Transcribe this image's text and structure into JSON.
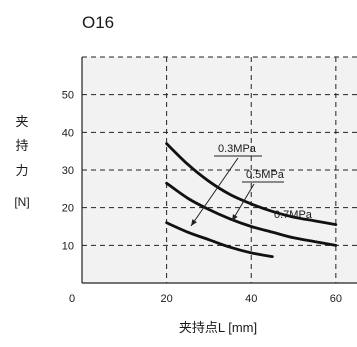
{
  "chart_data": {
    "type": "line",
    "title": "O16",
    "ylabel_chars": [
      "夹",
      "持",
      "力"
    ],
    "ylabel_unit": "[N]",
    "xlabel": "夹持点L [mm]",
    "xlim": [
      0,
      65
    ],
    "ylim": [
      0,
      60
    ],
    "xticks": [
      0,
      20,
      40,
      60
    ],
    "yticks": [
      10,
      20,
      30,
      40,
      50
    ],
    "grid": true,
    "series": [
      {
        "name": "0.3MPa",
        "x": [
          20,
          25,
          30,
          35,
          40,
          45
        ],
        "y": [
          16,
          13.5,
          11.5,
          9.5,
          8,
          7
        ]
      },
      {
        "name": "0.5MPa",
        "x": [
          20,
          25,
          30,
          35,
          40,
          45,
          50,
          55,
          60
        ],
        "y": [
          26.5,
          22.5,
          19.5,
          17,
          15,
          13.5,
          12,
          11,
          10
        ]
      },
      {
        "name": "0.7MPa",
        "x": [
          20,
          25,
          30,
          35,
          40,
          45,
          50,
          55,
          60
        ],
        "y": [
          37,
          31.5,
          27,
          23.5,
          21,
          19,
          17.5,
          16.5,
          15.5
        ]
      }
    ],
    "annotations": [
      "0.3MPa",
      "0.5MPa",
      "0.7MPa"
    ]
  }
}
